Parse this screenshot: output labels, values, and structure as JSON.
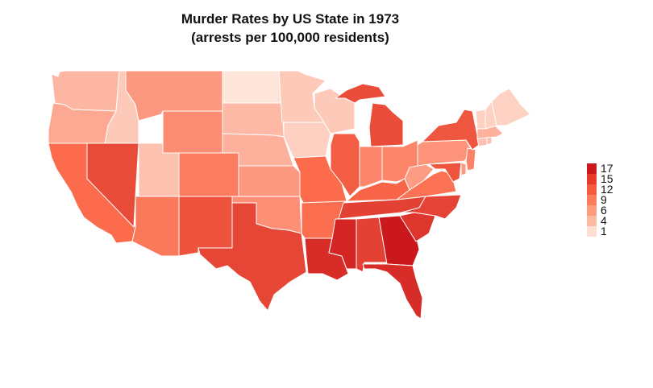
{
  "title_line1": "Murder Rates by US State in 1973",
  "title_line2": "(arrests per 100,000 residents)",
  "legend": {
    "labels": [
      "17",
      "15",
      "12",
      "9",
      "6",
      "4",
      "1"
    ],
    "colors": [
      "#cb181d",
      "#e83a2c",
      "#f45a3e",
      "#fb7c5c",
      "#fc9d7f",
      "#fcbba1",
      "#fee0d2"
    ]
  },
  "map_data": {
    "type": "choropleth",
    "value_range": [
      0.8,
      17.4
    ],
    "palette_low": "#fee5d9",
    "palette_high": "#cb181d",
    "states": [
      {
        "name": "Washington",
        "value": 4.0
      },
      {
        "name": "Oregon",
        "value": 4.9
      },
      {
        "name": "California",
        "value": 9.0
      },
      {
        "name": "Idaho",
        "value": 2.6
      },
      {
        "name": "Nevada",
        "value": 12.2
      },
      {
        "name": "Montana",
        "value": 6.0
      },
      {
        "name": "Wyoming",
        "value": 6.8
      },
      {
        "name": "Utah",
        "value": 3.2
      },
      {
        "name": "Arizona",
        "value": 8.1
      },
      {
        "name": "Colorado",
        "value": 7.9
      },
      {
        "name": "New Mexico",
        "value": 11.4
      },
      {
        "name": "North Dakota",
        "value": 0.8
      },
      {
        "name": "South Dakota",
        "value": 3.8
      },
      {
        "name": "Nebraska",
        "value": 4.3
      },
      {
        "name": "Kansas",
        "value": 6.0
      },
      {
        "name": "Oklahoma",
        "value": 6.6
      },
      {
        "name": "Texas",
        "value": 12.7
      },
      {
        "name": "Minnesota",
        "value": 2.7
      },
      {
        "name": "Iowa",
        "value": 2.2
      },
      {
        "name": "Missouri",
        "value": 9.0
      },
      {
        "name": "Arkansas",
        "value": 8.8
      },
      {
        "name": "Louisiana",
        "value": 15.4
      },
      {
        "name": "Wisconsin",
        "value": 2.6
      },
      {
        "name": "Illinois",
        "value": 10.4
      },
      {
        "name": "Michigan",
        "value": 12.1
      },
      {
        "name": "Indiana",
        "value": 7.2
      },
      {
        "name": "Ohio",
        "value": 7.3
      },
      {
        "name": "Kentucky",
        "value": 9.7
      },
      {
        "name": "Tennessee",
        "value": 13.2
      },
      {
        "name": "Mississippi",
        "value": 16.1
      },
      {
        "name": "Alabama",
        "value": 13.2
      },
      {
        "name": "Georgia",
        "value": 17.4
      },
      {
        "name": "Florida",
        "value": 15.4
      },
      {
        "name": "South Carolina",
        "value": 14.4
      },
      {
        "name": "North Carolina",
        "value": 13.0
      },
      {
        "name": "Virginia",
        "value": 8.5
      },
      {
        "name": "West Virginia",
        "value": 5.7
      },
      {
        "name": "Pennsylvania",
        "value": 6.3
      },
      {
        "name": "New York",
        "value": 11.1
      },
      {
        "name": "Maryland",
        "value": 11.3
      },
      {
        "name": "Delaware",
        "value": 5.9
      },
      {
        "name": "New Jersey",
        "value": 7.4
      },
      {
        "name": "Connecticut",
        "value": 3.3
      },
      {
        "name": "Rhode Island",
        "value": 3.4
      },
      {
        "name": "Massachusetts",
        "value": 4.4
      },
      {
        "name": "Vermont",
        "value": 2.2
      },
      {
        "name": "New Hampshire",
        "value": 2.1
      },
      {
        "name": "Maine",
        "value": 2.1
      }
    ]
  }
}
